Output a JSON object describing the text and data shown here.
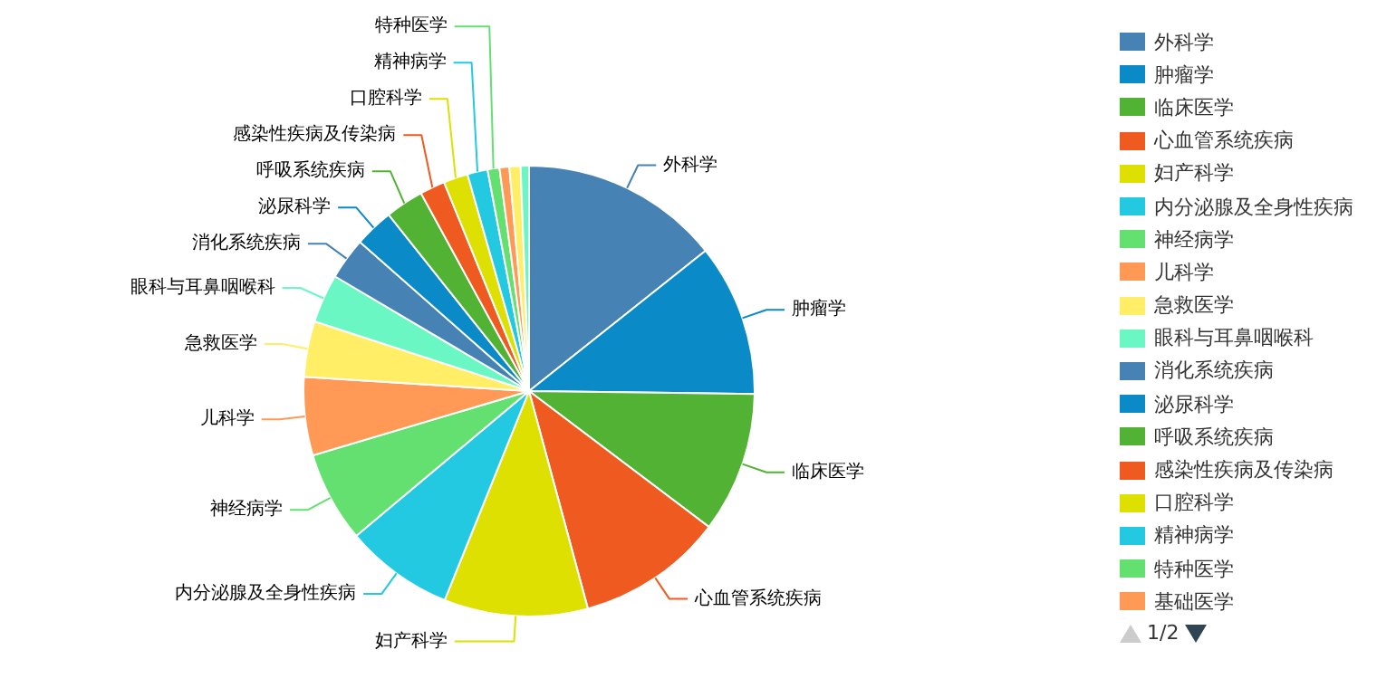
{
  "chart_data": {
    "type": "pie",
    "categories": [
      "外科学",
      "肿瘤学",
      "临床医学",
      "心血管系统疾病",
      "妇产科学",
      "内分泌腺及全身性疾病",
      "神经病学",
      "儿科学",
      "急救医学",
      "眼科与耳鼻咽喉科",
      "消化系统疾病",
      "泌尿科学",
      "呼吸系统疾病",
      "感染性疾病及传染病",
      "口腔科学",
      "精神病学",
      "特种医学",
      "基础医学",
      null,
      null
    ],
    "values": [
      14.3,
      10.9,
      10.1,
      10.5,
      10.3,
      7.8,
      6.5,
      5.6,
      4,
      3.5,
      3,
      2.8,
      2.75,
      1.8,
      1.75,
      1.45,
      0.85,
      0.7,
      0.8,
      0.6
    ],
    "colors": [
      "#4682b4",
      "#0a8ac6",
      "#52b233",
      "#ee5a1f",
      "#dde000",
      "#22c9e0",
      "#63e070",
      "#ff9955",
      "#ffee66",
      "#6af7c4",
      "#4682b4",
      "#0a8ac6",
      "#52b233",
      "#ee5a1f",
      "#dde000",
      "#22c9e0",
      "#63e070",
      "#ff9955",
      "#ffee66",
      "#6af7c4"
    ],
    "legend": "right",
    "annotations": [
      "1/2"
    ]
  }
}
